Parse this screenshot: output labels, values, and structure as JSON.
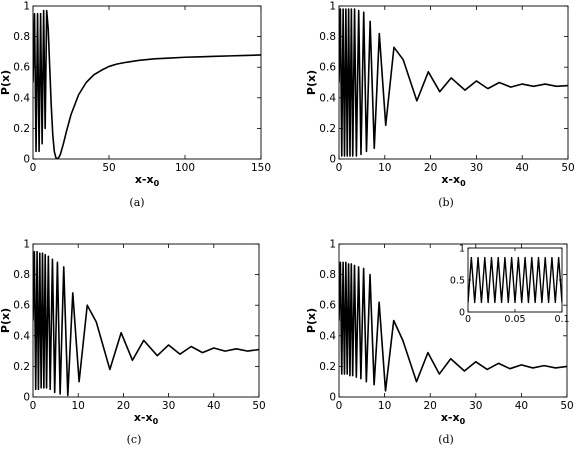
{
  "figure": {
    "panels": [
      {
        "caption": "(a)",
        "chart_data": {
          "type": "line",
          "title": "",
          "xlabel": "x-x",
          "xlabel_sub": "0",
          "ylabel": "P(x)",
          "xlim": [
            0,
            150
          ],
          "ylim": [
            0,
            1
          ],
          "xticks": [
            0,
            50,
            100,
            150
          ],
          "yticks": [
            0,
            0.2,
            0.4,
            0.6,
            0.8,
            1
          ],
          "xtick_labels": [
            "0",
            "50",
            "100",
            "150"
          ],
          "ytick_labels": [
            "0",
            "0.2",
            "0.4",
            "0.6",
            "0.8",
            "1"
          ],
          "grid": false,
          "series": [
            {
              "x": [
                0,
                1,
                2,
                3,
                4,
                5,
                6,
                7,
                8,
                9,
                10,
                11,
                12,
                13,
                14,
                15,
                16,
                17,
                18,
                20,
                22,
                25,
                30,
                35,
                40,
                45,
                50,
                55,
                60,
                70,
                80,
                90,
                100,
                110,
                120,
                130,
                140,
                150
              ],
              "y": [
                0.5,
                0.95,
                0.05,
                0.95,
                0.05,
                0.95,
                0.1,
                0.97,
                0.2,
                0.97,
                0.85,
                0.6,
                0.35,
                0.16,
                0.05,
                0.01,
                0.0,
                0.01,
                0.03,
                0.1,
                0.18,
                0.29,
                0.42,
                0.5,
                0.55,
                0.58,
                0.605,
                0.62,
                0.63,
                0.645,
                0.655,
                0.66,
                0.665,
                0.668,
                0.671,
                0.674,
                0.677,
                0.68
              ]
            }
          ]
        }
      },
      {
        "caption": "(b)",
        "chart_data": {
          "type": "line",
          "title": "",
          "xlabel": "x-x",
          "xlabel_sub": "0",
          "ylabel": "P(x)",
          "xlim": [
            0,
            50
          ],
          "ylim": [
            0,
            1
          ],
          "xticks": [
            0,
            10,
            20,
            30,
            40,
            50
          ],
          "yticks": [
            0,
            0.2,
            0.4,
            0.6,
            0.8,
            1
          ],
          "xtick_labels": [
            "0",
            "10",
            "20",
            "30",
            "40",
            "50"
          ],
          "ytick_labels": [
            "0",
            "0.2",
            "0.4",
            "0.6",
            "0.8",
            "1"
          ],
          "grid": false,
          "series": [
            {
              "x": [
                0,
                0.3,
                0.6,
                0.9,
                1.2,
                1.5,
                1.8,
                2.1,
                2.4,
                2.7,
                3.0,
                3.4,
                3.8,
                4.3,
                4.8,
                5.4,
                6.0,
                6.8,
                7.7,
                8.8,
                10.2,
                12.0,
                14.0,
                17.0,
                19.5,
                22.0,
                24.5,
                27.5,
                30.0,
                32.5,
                35.0,
                37.5,
                40.0,
                42.5,
                45.0,
                47.5,
                50.0
              ],
              "y": [
                0.5,
                0.98,
                0.02,
                0.98,
                0.02,
                0.98,
                0.02,
                0.98,
                0.02,
                0.98,
                0.02,
                0.98,
                0.02,
                0.97,
                0.03,
                0.96,
                0.05,
                0.9,
                0.07,
                0.82,
                0.22,
                0.73,
                0.65,
                0.38,
                0.57,
                0.44,
                0.53,
                0.45,
                0.51,
                0.46,
                0.5,
                0.47,
                0.49,
                0.475,
                0.49,
                0.475,
                0.48
              ]
            }
          ]
        }
      },
      {
        "caption": "(c)",
        "chart_data": {
          "type": "line",
          "title": "",
          "xlabel": "x-x",
          "xlabel_sub": "0",
          "ylabel": "P(x)",
          "xlim": [
            0,
            50
          ],
          "ylim": [
            0,
            1
          ],
          "xticks": [
            0,
            10,
            20,
            30,
            40,
            50
          ],
          "yticks": [
            0,
            0.2,
            0.4,
            0.6,
            0.8,
            1
          ],
          "xtick_labels": [
            "0",
            "10",
            "20",
            "30",
            "40",
            "50"
          ],
          "ytick_labels": [
            "0",
            "0.2",
            "0.4",
            "0.6",
            "0.8",
            "1"
          ],
          "grid": false,
          "series": [
            {
              "x": [
                0,
                0.3,
                0.6,
                0.9,
                1.2,
                1.5,
                1.8,
                2.1,
                2.4,
                2.7,
                3.0,
                3.4,
                3.8,
                4.3,
                4.8,
                5.4,
                6.0,
                6.8,
                7.7,
                8.8,
                10.2,
                12.0,
                14.0,
                17.0,
                19.5,
                22.0,
                24.5,
                27.5,
                30.0,
                32.5,
                35.0,
                37.5,
                40.0,
                42.5,
                45.0,
                47.5,
                50.0
              ],
              "y": [
                0.5,
                0.95,
                0.05,
                0.95,
                0.05,
                0.94,
                0.06,
                0.94,
                0.06,
                0.93,
                0.06,
                0.92,
                0.05,
                0.9,
                0.03,
                0.88,
                0.02,
                0.85,
                0.01,
                0.68,
                0.1,
                0.6,
                0.49,
                0.18,
                0.42,
                0.24,
                0.37,
                0.27,
                0.34,
                0.28,
                0.33,
                0.29,
                0.32,
                0.3,
                0.315,
                0.3,
                0.31
              ]
            }
          ]
        }
      },
      {
        "caption": "(d)",
        "chart_data": {
          "type": "line",
          "title": "",
          "xlabel": "x-x",
          "xlabel_sub": "0",
          "ylabel": "P(x)",
          "xlim": [
            0,
            50
          ],
          "ylim": [
            0,
            1
          ],
          "xticks": [
            0,
            10,
            20,
            30,
            40,
            50
          ],
          "yticks": [
            0,
            0.2,
            0.4,
            0.6,
            0.8,
            1
          ],
          "xtick_labels": [
            "0",
            "10",
            "20",
            "30",
            "40",
            "50"
          ],
          "ytick_labels": [
            "0",
            "0.2",
            "0.4",
            "0.6",
            "0.8",
            "1"
          ],
          "grid": false,
          "series": [
            {
              "x": [
                0,
                0.3,
                0.6,
                0.9,
                1.2,
                1.5,
                1.8,
                2.1,
                2.4,
                2.7,
                3.0,
                3.4,
                3.8,
                4.3,
                4.8,
                5.4,
                6.0,
                6.8,
                7.7,
                8.8,
                10.2,
                12.0,
                14.0,
                17.0,
                19.5,
                22.0,
                24.5,
                27.5,
                30.0,
                32.5,
                35.0,
                37.5,
                40.0,
                42.5,
                45.0,
                47.5,
                50.0
              ],
              "y": [
                0.5,
                0.88,
                0.15,
                0.88,
                0.15,
                0.88,
                0.15,
                0.87,
                0.14,
                0.87,
                0.14,
                0.86,
                0.13,
                0.85,
                0.12,
                0.84,
                0.1,
                0.8,
                0.08,
                0.62,
                0.04,
                0.5,
                0.37,
                0.1,
                0.29,
                0.15,
                0.25,
                0.17,
                0.23,
                0.18,
                0.22,
                0.185,
                0.21,
                0.19,
                0.205,
                0.19,
                0.2
              ]
            }
          ],
          "inset": {
            "type": "line",
            "xlim": [
              0,
              0.1
            ],
            "ylim": [
              0,
              1
            ],
            "xticks": [
              0,
              0.05,
              0.1
            ],
            "yticks": [
              0,
              0.5,
              1
            ],
            "xtick_labels": [
              "0",
              "0.05",
              "0.1"
            ],
            "ytick_labels": [
              "0",
              "0.5",
              "1"
            ],
            "series": [
              {
                "x": [
                  0,
                  0.00357,
                  0.00714,
                  0.01071,
                  0.01429,
                  0.01786,
                  0.02143,
                  0.025,
                  0.02857,
                  0.03214,
                  0.03571,
                  0.03929,
                  0.04286,
                  0.04643,
                  0.05,
                  0.05357,
                  0.05714,
                  0.06071,
                  0.06429,
                  0.06786,
                  0.07143,
                  0.075,
                  0.07857,
                  0.08214,
                  0.08571,
                  0.08929,
                  0.09286,
                  0.09643,
                  0.1
                ],
                "y": [
                  0.15,
                  0.85,
                  0.15,
                  0.85,
                  0.15,
                  0.85,
                  0.15,
                  0.85,
                  0.15,
                  0.85,
                  0.15,
                  0.85,
                  0.15,
                  0.85,
                  0.15,
                  0.85,
                  0.15,
                  0.85,
                  0.15,
                  0.85,
                  0.15,
                  0.85,
                  0.15,
                  0.85,
                  0.15,
                  0.85,
                  0.15,
                  0.85,
                  0.15
                ]
              }
            ]
          }
        }
      }
    ]
  }
}
